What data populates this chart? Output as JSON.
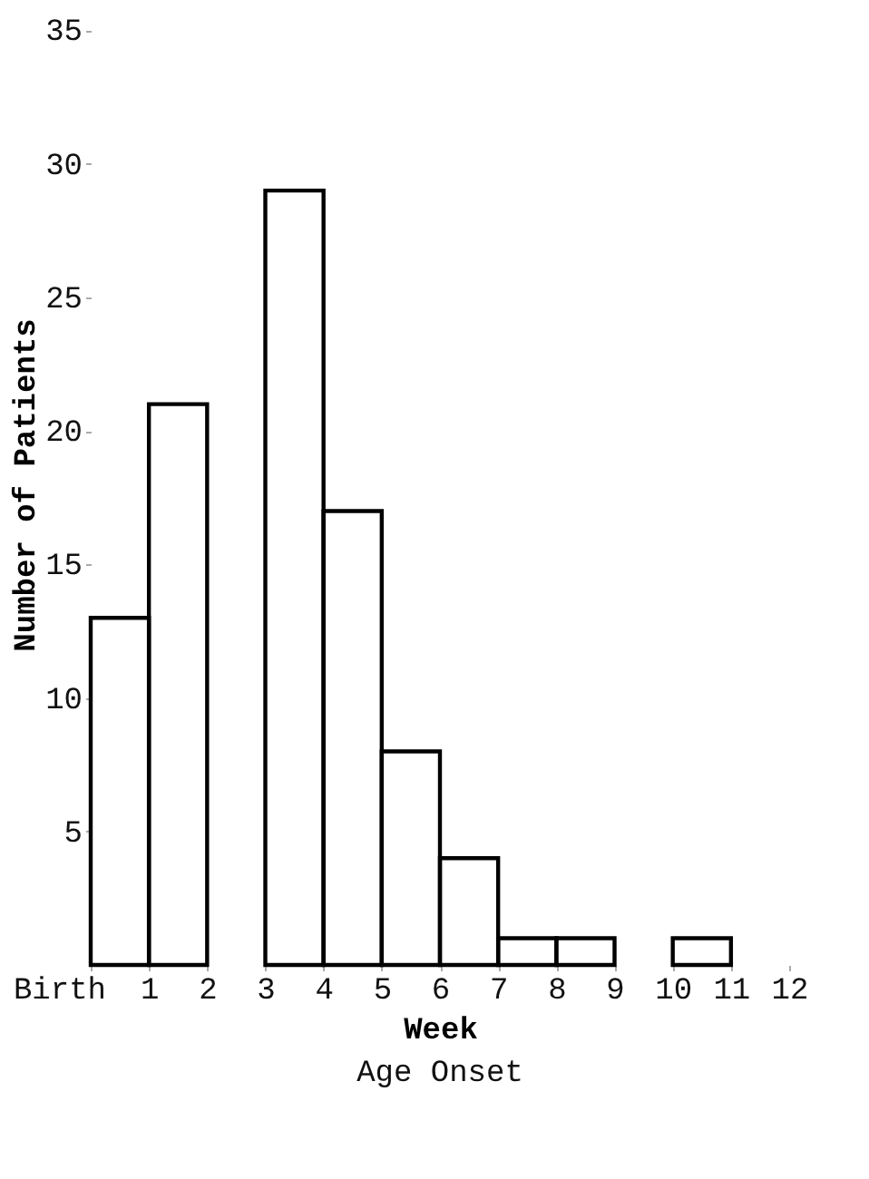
{
  "chart_data": {
    "type": "histogram",
    "title": "Age Onset",
    "xlabel": "Week",
    "ylabel": "Number of Patients",
    "bins": [
      0,
      1,
      2,
      3,
      4,
      5,
      6,
      7,
      8,
      9,
      10,
      11,
      12
    ],
    "values": [
      13,
      21,
      null,
      29,
      17,
      8,
      4,
      1,
      1,
      0,
      1,
      0
    ],
    "color": "#000000",
    "xlim": [
      0,
      12
    ],
    "xticks": [
      {
        "value": 0,
        "label": "Birth"
      },
      1,
      2,
      3,
      4,
      5,
      6,
      7,
      8,
      9,
      10,
      11,
      12
    ],
    "ylim": [
      0,
      36
    ],
    "yticks": [
      5,
      10,
      15,
      20,
      25,
      30,
      35
    ],
    "grid": false
  }
}
